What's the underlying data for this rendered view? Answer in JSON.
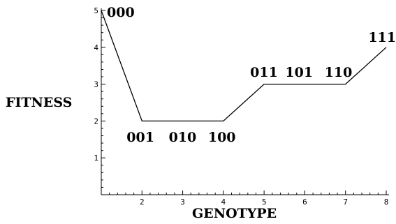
{
  "chart_data": {
    "type": "line",
    "xlabel": "GENOTYPE",
    "ylabel": "FITNESS",
    "xlim": [
      1,
      8
    ],
    "ylim": [
      0,
      5
    ],
    "x_ticks": [
      "2",
      "3",
      "4",
      "5",
      "6",
      "7",
      "8"
    ],
    "y_ticks": [
      "1",
      "2",
      "3",
      "4",
      "5"
    ],
    "grid": false,
    "points": [
      {
        "x": 1,
        "y": 5,
        "label": "000"
      },
      {
        "x": 2,
        "y": 2,
        "label": ""
      },
      {
        "x": 4,
        "y": 2,
        "label": ""
      },
      {
        "x": 5,
        "y": 3,
        "label": ""
      },
      {
        "x": 7,
        "y": 3,
        "label": ""
      },
      {
        "x": 8,
        "y": 4,
        "label": "111"
      }
    ],
    "group_labels": [
      {
        "text": "001 010 100",
        "near_x": [
          2,
          4
        ],
        "y": 2
      },
      {
        "text": "011 101 110",
        "near_x": [
          5,
          7
        ],
        "y": 3
      }
    ]
  }
}
